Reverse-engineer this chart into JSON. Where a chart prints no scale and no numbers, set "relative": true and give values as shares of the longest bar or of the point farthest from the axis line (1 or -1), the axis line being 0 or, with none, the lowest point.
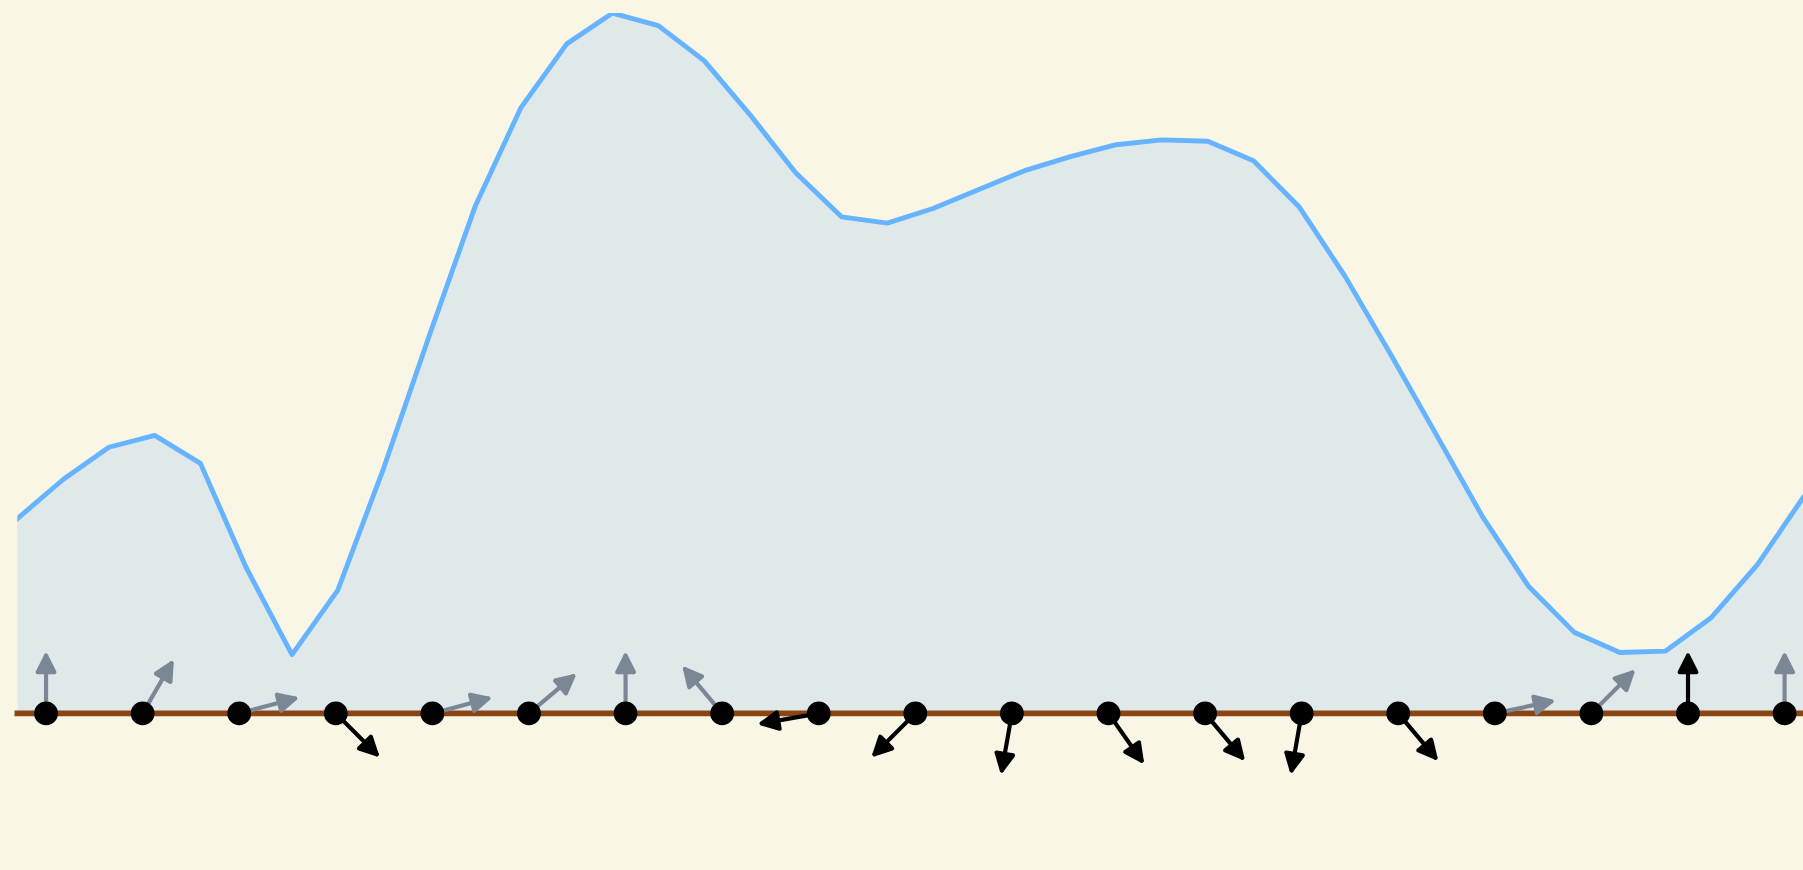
{
  "chart_data": {
    "type": "area",
    "relative": true,
    "categories": [
      null,
      null,
      null,
      null,
      null,
      null,
      null,
      null,
      null,
      null,
      null,
      null,
      null,
      null,
      null,
      null,
      null,
      null,
      null,
      null,
      null,
      null,
      null,
      null,
      null,
      null,
      null,
      null,
      null,
      null,
      null,
      null,
      null,
      null,
      null,
      null,
      null,
      null,
      null,
      null
    ],
    "series": [
      {
        "color": "#66b3ff",
        "values": [
          0.278,
          0.334,
          0.38,
          0.397,
          0.357,
          0.208,
          0.084,
          0.176,
          0.35,
          0.54,
          0.724,
          0.865,
          0.956,
          1.0,
          0.982,
          0.932,
          0.855,
          0.772,
          0.709,
          0.7,
          0.721,
          0.748,
          0.775,
          0.795,
          0.812,
          0.819,
          0.817,
          0.789,
          0.723,
          0.624,
          0.512,
          0.397,
          0.281,
          0.182,
          0.116,
          0.087,
          0.089,
          0.137,
          0.212,
          0.308
        ]
      }
    ],
    "grid": false,
    "legend": false
  }
}
